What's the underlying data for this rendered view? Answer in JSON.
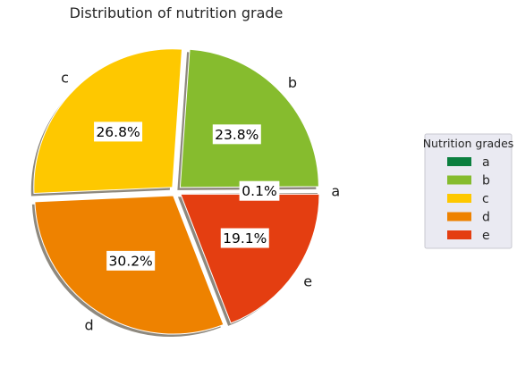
{
  "chart_data": {
    "type": "pie",
    "title": "Distribution of nutrition grade",
    "categories": [
      "a",
      "b",
      "c",
      "d",
      "e"
    ],
    "values": [
      0.1,
      23.8,
      26.8,
      30.2,
      19.1
    ],
    "value_labels": [
      "0.1%",
      "23.8%",
      "26.8%",
      "30.2%",
      "19.1%"
    ],
    "colors": [
      "#0b7f3f",
      "#86bc2e",
      "#fec800",
      "#ee8200",
      "#e43e11"
    ],
    "start_angle_deg": 0,
    "direction": "counterclockwise",
    "exploded": true,
    "shadow": true,
    "legend": {
      "title": "Nutrition grades",
      "entries": [
        "a",
        "b",
        "c",
        "d",
        "e"
      ],
      "placement": "center-right"
    }
  }
}
